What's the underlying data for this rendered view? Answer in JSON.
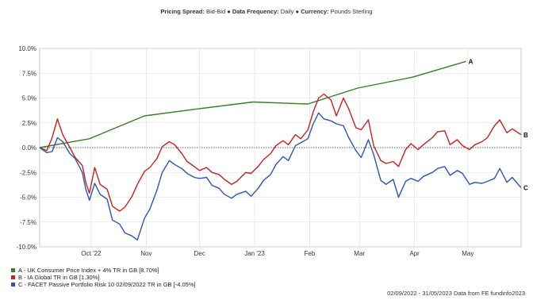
{
  "header": {
    "spread_label": "Pricing Spread:",
    "spread_value": "Bid-Bid",
    "freq_label": "Data Frequency:",
    "freq_value": "Daily",
    "currency_label": "Currency:",
    "currency_value": "Pounds Sterling"
  },
  "footer": {
    "text": "02/09/2022 - 31/05/2023 Data from FE fundinfo2023"
  },
  "chart_data": {
    "type": "line",
    "title": "",
    "xlabel": "",
    "ylabel": "",
    "x_range": [
      "2022-09-02",
      "2023-05-31"
    ],
    "ylim": [
      -10,
      10
    ],
    "y_ticks": [
      {
        "value": 10,
        "label": "10.0%"
      },
      {
        "value": 7.5,
        "label": "7.5%"
      },
      {
        "value": 5,
        "label": "5.0%"
      },
      {
        "value": 2.5,
        "label": "2.5%"
      },
      {
        "value": 0,
        "label": "0.0%"
      },
      {
        "value": -2.5,
        "label": "-2.5%"
      },
      {
        "value": -5,
        "label": "-5.0%"
      },
      {
        "value": -7.5,
        "label": "-7.5%"
      },
      {
        "value": -10,
        "label": "-10.0%"
      }
    ],
    "x_ticks": [
      {
        "date": "2022-10-01",
        "label": "Oct '22"
      },
      {
        "date": "2022-11-01",
        "label": "Nov"
      },
      {
        "date": "2022-12-01",
        "label": "Dec"
      },
      {
        "date": "2023-01-01",
        "label": "Jan '23"
      },
      {
        "date": "2023-02-01",
        "label": "Feb"
      },
      {
        "date": "2023-03-01",
        "label": "Mar"
      },
      {
        "date": "2023-04-01",
        "label": "Apr"
      },
      {
        "date": "2023-05-01",
        "label": "May"
      }
    ],
    "grid": true,
    "zero_line": "dotted",
    "legend_placement": "bottom-left",
    "series": [
      {
        "name": "A - UK Consumer Price Index + 4% TR in GB [8.70%]",
        "end_label": "A",
        "color": "#3a7d2a",
        "points": [
          [
            "2022-09-02",
            0.0
          ],
          [
            "2022-09-30",
            0.9
          ],
          [
            "2022-10-31",
            3.2
          ],
          [
            "2022-11-30",
            3.9
          ],
          [
            "2022-12-31",
            4.6
          ],
          [
            "2023-01-31",
            4.4
          ],
          [
            "2023-02-28",
            6.0
          ],
          [
            "2023-03-31",
            7.1
          ],
          [
            "2023-04-30",
            8.7
          ]
        ]
      },
      {
        "name": "B - IA Global TR in GB [1.30%]",
        "end_label": "B",
        "color": "#cc1f1f",
        "points": [
          [
            "2022-09-02",
            0.0
          ],
          [
            "2022-09-06",
            -0.3
          ],
          [
            "2022-09-09",
            1.0
          ],
          [
            "2022-09-12",
            2.9
          ],
          [
            "2022-09-15",
            1.3
          ],
          [
            "2022-09-19",
            0.0
          ],
          [
            "2022-09-22",
            -1.0
          ],
          [
            "2022-09-26",
            -1.8
          ],
          [
            "2022-09-28",
            -3.5
          ],
          [
            "2022-09-30",
            -4.6
          ],
          [
            "2022-10-03",
            -2.0
          ],
          [
            "2022-10-06",
            -3.7
          ],
          [
            "2022-10-10",
            -4.2
          ],
          [
            "2022-10-13",
            -5.9
          ],
          [
            "2022-10-17",
            -6.4
          ],
          [
            "2022-10-20",
            -6.0
          ],
          [
            "2022-10-24",
            -4.9
          ],
          [
            "2022-10-27",
            -3.7
          ],
          [
            "2022-10-31",
            -2.4
          ],
          [
            "2022-11-03",
            -2.0
          ],
          [
            "2022-11-07",
            -1.1
          ],
          [
            "2022-11-10",
            0.1
          ],
          [
            "2022-11-14",
            0.6
          ],
          [
            "2022-11-17",
            0.3
          ],
          [
            "2022-11-21",
            -0.6
          ],
          [
            "2022-11-24",
            -1.4
          ],
          [
            "2022-11-28",
            -1.9
          ],
          [
            "2022-12-01",
            -2.3
          ],
          [
            "2022-12-05",
            -2.0
          ],
          [
            "2022-12-08",
            -2.5
          ],
          [
            "2022-12-12",
            -2.7
          ],
          [
            "2022-12-15",
            -3.2
          ],
          [
            "2022-12-19",
            -3.7
          ],
          [
            "2022-12-22",
            -3.4
          ],
          [
            "2022-12-27",
            -2.5
          ],
          [
            "2022-12-30",
            -2.6
          ],
          [
            "2023-01-03",
            -1.9
          ],
          [
            "2023-01-06",
            -1.2
          ],
          [
            "2023-01-10",
            -0.6
          ],
          [
            "2023-01-13",
            0.2
          ],
          [
            "2023-01-17",
            0.7
          ],
          [
            "2023-01-20",
            0.3
          ],
          [
            "2023-01-24",
            1.3
          ],
          [
            "2023-01-27",
            0.9
          ],
          [
            "2023-01-31",
            1.8
          ],
          [
            "2023-02-03",
            3.6
          ],
          [
            "2023-02-06",
            5.0
          ],
          [
            "2023-02-09",
            5.4
          ],
          [
            "2023-02-13",
            4.8
          ],
          [
            "2023-02-16",
            3.2
          ],
          [
            "2023-02-20",
            5.0
          ],
          [
            "2023-02-23",
            3.9
          ],
          [
            "2023-02-27",
            2.0
          ],
          [
            "2023-03-02",
            1.8
          ],
          [
            "2023-03-06",
            2.8
          ],
          [
            "2023-03-09",
            0.2
          ],
          [
            "2023-03-13",
            -1.3
          ],
          [
            "2023-03-16",
            -1.6
          ],
          [
            "2023-03-20",
            -1.4
          ],
          [
            "2023-03-23",
            -1.9
          ],
          [
            "2023-03-27",
            -0.2
          ],
          [
            "2023-03-30",
            0.4
          ],
          [
            "2023-04-03",
            -0.2
          ],
          [
            "2023-04-06",
            0.3
          ],
          [
            "2023-04-11",
            1.0
          ],
          [
            "2023-04-14",
            1.6
          ],
          [
            "2023-04-18",
            1.7
          ],
          [
            "2023-04-21",
            0.3
          ],
          [
            "2023-04-25",
            0.8
          ],
          [
            "2023-04-28",
            0.2
          ],
          [
            "2023-05-02",
            -0.2
          ],
          [
            "2023-05-05",
            0.3
          ],
          [
            "2023-05-09",
            0.6
          ],
          [
            "2023-05-12",
            1.0
          ],
          [
            "2023-05-16",
            2.2
          ],
          [
            "2023-05-19",
            2.8
          ],
          [
            "2023-05-23",
            1.5
          ],
          [
            "2023-05-26",
            1.9
          ],
          [
            "2023-05-31",
            1.3
          ]
        ]
      },
      {
        "name": "C - FACET Passive Portfolio Risk 10 02/09/2022 TR in GB [-4.05%]",
        "end_label": "C",
        "color": "#2a55b5",
        "points": [
          [
            "2022-09-02",
            0.0
          ],
          [
            "2022-09-06",
            -0.5
          ],
          [
            "2022-09-09",
            -0.4
          ],
          [
            "2022-09-12",
            1.0
          ],
          [
            "2022-09-15",
            0.6
          ],
          [
            "2022-09-19",
            -0.6
          ],
          [
            "2022-09-22",
            -1.1
          ],
          [
            "2022-09-26",
            -2.5
          ],
          [
            "2022-09-28",
            -4.2
          ],
          [
            "2022-09-30",
            -5.3
          ],
          [
            "2022-10-03",
            -3.6
          ],
          [
            "2022-10-06",
            -4.7
          ],
          [
            "2022-10-10",
            -5.2
          ],
          [
            "2022-10-13",
            -7.3
          ],
          [
            "2022-10-17",
            -7.7
          ],
          [
            "2022-10-20",
            -8.6
          ],
          [
            "2022-10-24",
            -8.9
          ],
          [
            "2022-10-27",
            -9.3
          ],
          [
            "2022-10-31",
            -7.1
          ],
          [
            "2022-11-03",
            -6.2
          ],
          [
            "2022-11-07",
            -4.3
          ],
          [
            "2022-11-10",
            -2.5
          ],
          [
            "2022-11-14",
            -1.3
          ],
          [
            "2022-11-17",
            -1.7
          ],
          [
            "2022-11-21",
            -2.1
          ],
          [
            "2022-11-24",
            -2.6
          ],
          [
            "2022-11-28",
            -3.0
          ],
          [
            "2022-12-01",
            -3.1
          ],
          [
            "2022-12-05",
            -3.0
          ],
          [
            "2022-12-08",
            -3.8
          ],
          [
            "2022-12-12",
            -4.1
          ],
          [
            "2022-12-15",
            -4.7
          ],
          [
            "2022-12-19",
            -5.1
          ],
          [
            "2022-12-22",
            -4.7
          ],
          [
            "2022-12-27",
            -4.4
          ],
          [
            "2022-12-30",
            -4.9
          ],
          [
            "2023-01-03",
            -4.1
          ],
          [
            "2023-01-06",
            -3.3
          ],
          [
            "2023-01-10",
            -2.7
          ],
          [
            "2023-01-13",
            -1.7
          ],
          [
            "2023-01-17",
            -0.9
          ],
          [
            "2023-01-20",
            -1.3
          ],
          [
            "2023-01-24",
            0.2
          ],
          [
            "2023-01-27",
            0.5
          ],
          [
            "2023-01-31",
            0.9
          ],
          [
            "2023-02-03",
            2.4
          ],
          [
            "2023-02-06",
            3.5
          ],
          [
            "2023-02-09",
            2.9
          ],
          [
            "2023-02-13",
            2.7
          ],
          [
            "2023-02-16",
            2.4
          ],
          [
            "2023-02-20",
            2.2
          ],
          [
            "2023-02-23",
            1.0
          ],
          [
            "2023-02-27",
            -0.3
          ],
          [
            "2023-03-02",
            -1.0
          ],
          [
            "2023-03-06",
            0.8
          ],
          [
            "2023-03-09",
            -0.7
          ],
          [
            "2023-03-13",
            -3.3
          ],
          [
            "2023-03-16",
            -3.7
          ],
          [
            "2023-03-20",
            -3.2
          ],
          [
            "2023-03-23",
            -5.0
          ],
          [
            "2023-03-27",
            -3.4
          ],
          [
            "2023-03-30",
            -3.1
          ],
          [
            "2023-04-03",
            -3.4
          ],
          [
            "2023-04-06",
            -2.9
          ],
          [
            "2023-04-11",
            -2.5
          ],
          [
            "2023-04-14",
            -2.1
          ],
          [
            "2023-04-18",
            -1.9
          ],
          [
            "2023-04-21",
            -2.8
          ],
          [
            "2023-04-25",
            -2.3
          ],
          [
            "2023-04-28",
            -2.6
          ],
          [
            "2023-05-02",
            -3.7
          ],
          [
            "2023-05-05",
            -3.5
          ],
          [
            "2023-05-09",
            -3.6
          ],
          [
            "2023-05-12",
            -3.4
          ],
          [
            "2023-05-16",
            -3.1
          ],
          [
            "2023-05-19",
            -2.1
          ],
          [
            "2023-05-23",
            -3.5
          ],
          [
            "2023-05-26",
            -3.0
          ],
          [
            "2023-05-31",
            -4.05
          ]
        ]
      }
    ]
  }
}
